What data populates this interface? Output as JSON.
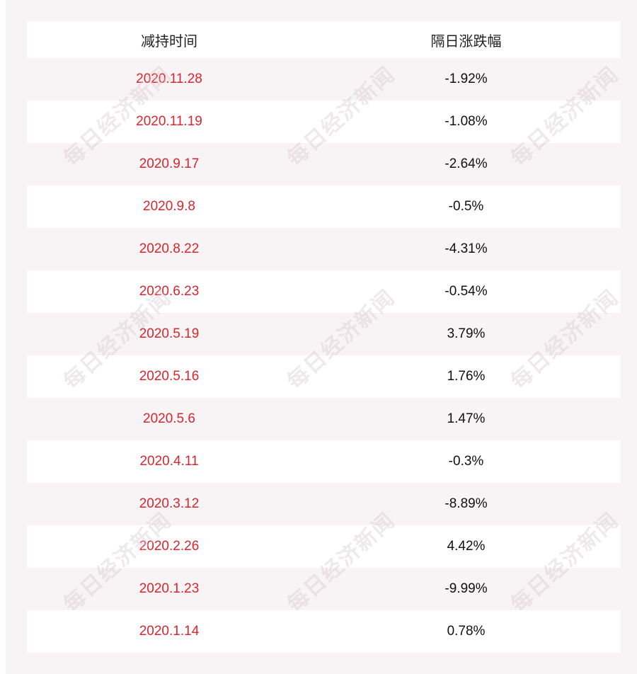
{
  "table": {
    "headers": {
      "date": "减持时间",
      "change": "隔日涨跌幅"
    },
    "rows": [
      {
        "date": "2020.11.28",
        "change": "-1.92%"
      },
      {
        "date": "2020.11.19",
        "change": "-1.08%"
      },
      {
        "date": "2020.9.17",
        "change": "-2.64%"
      },
      {
        "date": "2020.9.8",
        "change": "-0.5%"
      },
      {
        "date": "2020.8.22",
        "change": "-4.31%"
      },
      {
        "date": "2020.6.23",
        "change": "-0.54%"
      },
      {
        "date": "2020.5.19",
        "change": "3.79%"
      },
      {
        "date": "2020.5.16",
        "change": "1.76%"
      },
      {
        "date": "2020.5.6",
        "change": "1.47%"
      },
      {
        "date": "2020.4.11",
        "change": "-0.3%"
      },
      {
        "date": "2020.3.12",
        "change": "-8.89%"
      },
      {
        "date": "2020.2.26",
        "change": "4.42%"
      },
      {
        "date": "2020.1.23",
        "change": "-9.99%"
      },
      {
        "date": "2020.1.14",
        "change": "0.78%"
      }
    ]
  },
  "watermark": {
    "text": "每日经济新闻"
  },
  "colors": {
    "date_text": "#d8262f",
    "change_text": "#111111",
    "panel_background": "#f8f3f4",
    "row_white": "#ffffff"
  }
}
